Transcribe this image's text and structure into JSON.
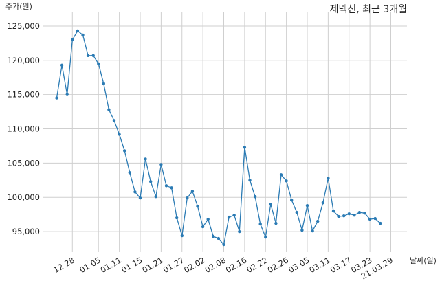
{
  "chart_data": {
    "type": "line",
    "title": "제넥신, 최근 3개월",
    "ylabel": "주가(원)",
    "xlabel": "날짜(일)",
    "ylim": [
      92000,
      127000
    ],
    "y_ticks": [
      95000,
      100000,
      105000,
      110000,
      115000,
      120000,
      125000
    ],
    "y_tick_labels": [
      "95,000",
      "100,000",
      "105,000",
      "110,000",
      "115,000",
      "120,000",
      "125,000"
    ],
    "x_ticks": [
      "12.28",
      "01.05",
      "01.11",
      "01.15",
      "01.21",
      "01.27",
      "02.02",
      "02.08",
      "02.16",
      "02.22",
      "02.26",
      "03.05",
      "03.11",
      "03.17",
      "03.23",
      "21.03.29"
    ],
    "grid": true,
    "series": [
      {
        "color": "#2b7bb4",
        "x": [
          "12.22",
          "12.23",
          "12.24",
          "12.28",
          "12.29",
          "12.30",
          "12.31",
          "01.04",
          "01.05",
          "01.06",
          "01.07",
          "01.08",
          "01.11",
          "01.12",
          "01.13",
          "01.14",
          "01.15",
          "01.18",
          "01.19",
          "01.20",
          "01.21",
          "01.22",
          "01.25",
          "01.26",
          "01.27",
          "01.28",
          "01.29",
          "02.01",
          "02.02",
          "02.03",
          "02.04",
          "02.05",
          "02.08",
          "02.09",
          "02.10",
          "02.15",
          "02.16",
          "02.17",
          "02.18",
          "02.19",
          "02.22",
          "02.23",
          "02.24",
          "02.25",
          "02.26",
          "03.02",
          "03.03",
          "03.04",
          "03.05",
          "03.08",
          "03.09",
          "03.10",
          "03.11",
          "03.12",
          "03.15",
          "03.16",
          "03.17",
          "03.18",
          "03.19",
          "03.22",
          "03.23",
          "03.24",
          "03.25",
          "03.26",
          "03.29"
        ],
        "values": [
          114500,
          119300,
          115000,
          123000,
          124300,
          123700,
          120700,
          120700,
          119500,
          116600,
          112800,
          111200,
          109200,
          106800,
          103600,
          100800,
          99900,
          105600,
          102300,
          100100,
          104800,
          101700,
          101400,
          97000,
          94400,
          99900,
          100900,
          98700,
          95700,
          96800,
          94300,
          94000,
          93100,
          97100,
          97400,
          95000,
          107300,
          102500,
          100100,
          96100,
          94200,
          99000,
          96200,
          103300,
          102400,
          99600,
          97800,
          95200,
          98800,
          95100,
          96500,
          99200,
          102800,
          98000,
          97200,
          97300,
          97600,
          97400,
          97800,
          97700,
          96800,
          96900,
          96200,
          null,
          null
        ]
      }
    ]
  }
}
